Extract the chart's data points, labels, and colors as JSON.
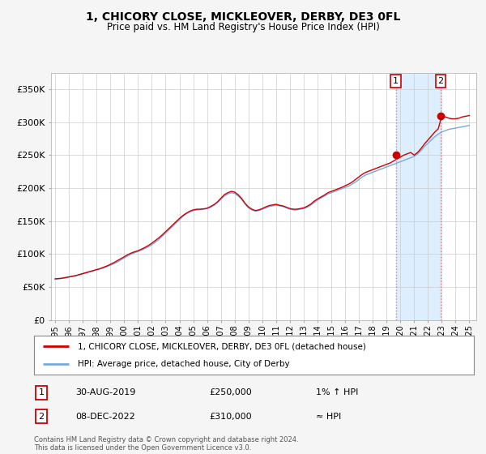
{
  "title": "1, CHICORY CLOSE, MICKLEOVER, DERBY, DE3 0FL",
  "subtitle": "Price paid vs. HM Land Registry's House Price Index (HPI)",
  "ylabel_ticks": [
    "£0",
    "£50K",
    "£100K",
    "£150K",
    "£200K",
    "£250K",
    "£300K",
    "£350K"
  ],
  "ytick_values": [
    0,
    50000,
    100000,
    150000,
    200000,
    250000,
    300000,
    350000
  ],
  "ylim": [
    0,
    375000
  ],
  "xlim_start": 1994.7,
  "xlim_end": 2025.5,
  "legend_line1": "1, CHICORY CLOSE, MICKLEOVER, DERBY, DE3 0FL (detached house)",
  "legend_line2": "HPI: Average price, detached house, City of Derby",
  "legend_color1": "#cc0000",
  "legend_color2": "#7aaadd",
  "annotation1_num": "1",
  "annotation1_date": "30-AUG-2019",
  "annotation1_price": "£250,000",
  "annotation1_hpi": "1% ↑ HPI",
  "annotation2_num": "2",
  "annotation2_date": "08-DEC-2022",
  "annotation2_price": "£310,000",
  "annotation2_hpi": "≈ HPI",
  "footer": "Contains HM Land Registry data © Crown copyright and database right 2024.\nThis data is licensed under the Open Government Licence v3.0.",
  "bg_color": "#f5f5f5",
  "plot_bg_color": "#ffffff",
  "grid_color": "#cccccc",
  "marker1_x": 2019.67,
  "marker1_y": 250000,
  "marker2_x": 2022.92,
  "marker2_y": 310000,
  "shade_color": "#ddeeff",
  "vline_color": "#e08080",
  "hpi_x": [
    1995.0,
    1995.25,
    1995.5,
    1995.75,
    1996.0,
    1996.25,
    1996.5,
    1996.75,
    1997.0,
    1997.25,
    1997.5,
    1997.75,
    1998.0,
    1998.25,
    1998.5,
    1998.75,
    1999.0,
    1999.25,
    1999.5,
    1999.75,
    2000.0,
    2000.25,
    2000.5,
    2000.75,
    2001.0,
    2001.25,
    2001.5,
    2001.75,
    2002.0,
    2002.25,
    2002.5,
    2002.75,
    2003.0,
    2003.25,
    2003.5,
    2003.75,
    2004.0,
    2004.25,
    2004.5,
    2004.75,
    2005.0,
    2005.25,
    2005.5,
    2005.75,
    2006.0,
    2006.25,
    2006.5,
    2006.75,
    2007.0,
    2007.25,
    2007.5,
    2007.75,
    2008.0,
    2008.25,
    2008.5,
    2008.75,
    2009.0,
    2009.25,
    2009.5,
    2009.75,
    2010.0,
    2010.25,
    2010.5,
    2010.75,
    2011.0,
    2011.25,
    2011.5,
    2011.75,
    2012.0,
    2012.25,
    2012.5,
    2012.75,
    2013.0,
    2013.25,
    2013.5,
    2013.75,
    2014.0,
    2014.25,
    2014.5,
    2014.75,
    2015.0,
    2015.25,
    2015.5,
    2015.75,
    2016.0,
    2016.25,
    2016.5,
    2016.75,
    2017.0,
    2017.25,
    2017.5,
    2017.75,
    2018.0,
    2018.25,
    2018.5,
    2018.75,
    2019.0,
    2019.25,
    2019.5,
    2019.75,
    2020.0,
    2020.25,
    2020.5,
    2020.75,
    2021.0,
    2021.25,
    2021.5,
    2021.75,
    2022.0,
    2022.25,
    2022.5,
    2022.75,
    2023.0,
    2023.25,
    2023.5,
    2023.75,
    2024.0,
    2024.25,
    2024.5,
    2024.75,
    2025.0
  ],
  "hpi_y": [
    62000,
    62500,
    63000,
    64000,
    65000,
    66000,
    67000,
    68500,
    70000,
    71500,
    73000,
    74500,
    76000,
    77500,
    79000,
    81000,
    83000,
    85500,
    88000,
    91000,
    94000,
    97000,
    100000,
    102000,
    104000,
    106000,
    108500,
    111000,
    114000,
    118000,
    122000,
    127000,
    132000,
    137000,
    142000,
    147000,
    152000,
    157000,
    161000,
    164000,
    166000,
    167000,
    167500,
    168000,
    169000,
    171000,
    174000,
    178000,
    183000,
    188000,
    191000,
    193000,
    192000,
    188000,
    183000,
    176000,
    170000,
    167000,
    165000,
    166000,
    168000,
    170000,
    172000,
    173000,
    174000,
    173000,
    172000,
    170000,
    168000,
    167000,
    167000,
    168000,
    169000,
    171000,
    174000,
    178000,
    182000,
    185000,
    188000,
    191000,
    193000,
    195000,
    197000,
    199000,
    201000,
    203000,
    206000,
    209000,
    213000,
    217000,
    220000,
    222000,
    224000,
    226000,
    228000,
    230000,
    232000,
    234000,
    236000,
    238000,
    240000,
    242000,
    244000,
    246000,
    248000,
    252000,
    257000,
    263000,
    268000,
    273000,
    278000,
    282000,
    285000,
    287000,
    289000,
    290000,
    291000,
    292000,
    293000,
    294000,
    295000
  ],
  "price_y": [
    62500,
    63000,
    63500,
    64500,
    65500,
    66500,
    67500,
    69000,
    70500,
    72000,
    73500,
    75000,
    76500,
    78000,
    80000,
    82000,
    84500,
    87000,
    90000,
    93000,
    96000,
    99000,
    101500,
    103500,
    105000,
    107500,
    110000,
    113000,
    116500,
    120500,
    124500,
    129000,
    134000,
    139000,
    144000,
    149000,
    154000,
    158500,
    162000,
    165000,
    167000,
    168000,
    168000,
    168500,
    169500,
    172000,
    175000,
    179000,
    184500,
    190000,
    193000,
    195000,
    194000,
    190000,
    184500,
    177000,
    171500,
    168000,
    166000,
    167000,
    169000,
    171500,
    173500,
    174500,
    175500,
    174000,
    173000,
    171000,
    169000,
    168000,
    168000,
    169000,
    170000,
    172500,
    175500,
    180000,
    183500,
    186500,
    189500,
    193000,
    195000,
    197000,
    199000,
    201000,
    203500,
    206000,
    209000,
    213000,
    217000,
    221000,
    224000,
    226000,
    228000,
    230000,
    232000,
    234000,
    236000,
    238000,
    241000,
    244000,
    247000,
    250000,
    252000,
    254000,
    250000,
    254000,
    260000,
    267000,
    273000,
    279000,
    285000,
    290000,
    310000,
    308000,
    306000,
    305000,
    305000,
    306000,
    308000,
    309000,
    310000
  ],
  "xtick_years": [
    1995,
    1996,
    1997,
    1998,
    1999,
    2000,
    2001,
    2002,
    2003,
    2004,
    2005,
    2006,
    2007,
    2008,
    2009,
    2010,
    2011,
    2012,
    2013,
    2014,
    2015,
    2016,
    2017,
    2018,
    2019,
    2020,
    2021,
    2022,
    2023,
    2024,
    2025
  ]
}
